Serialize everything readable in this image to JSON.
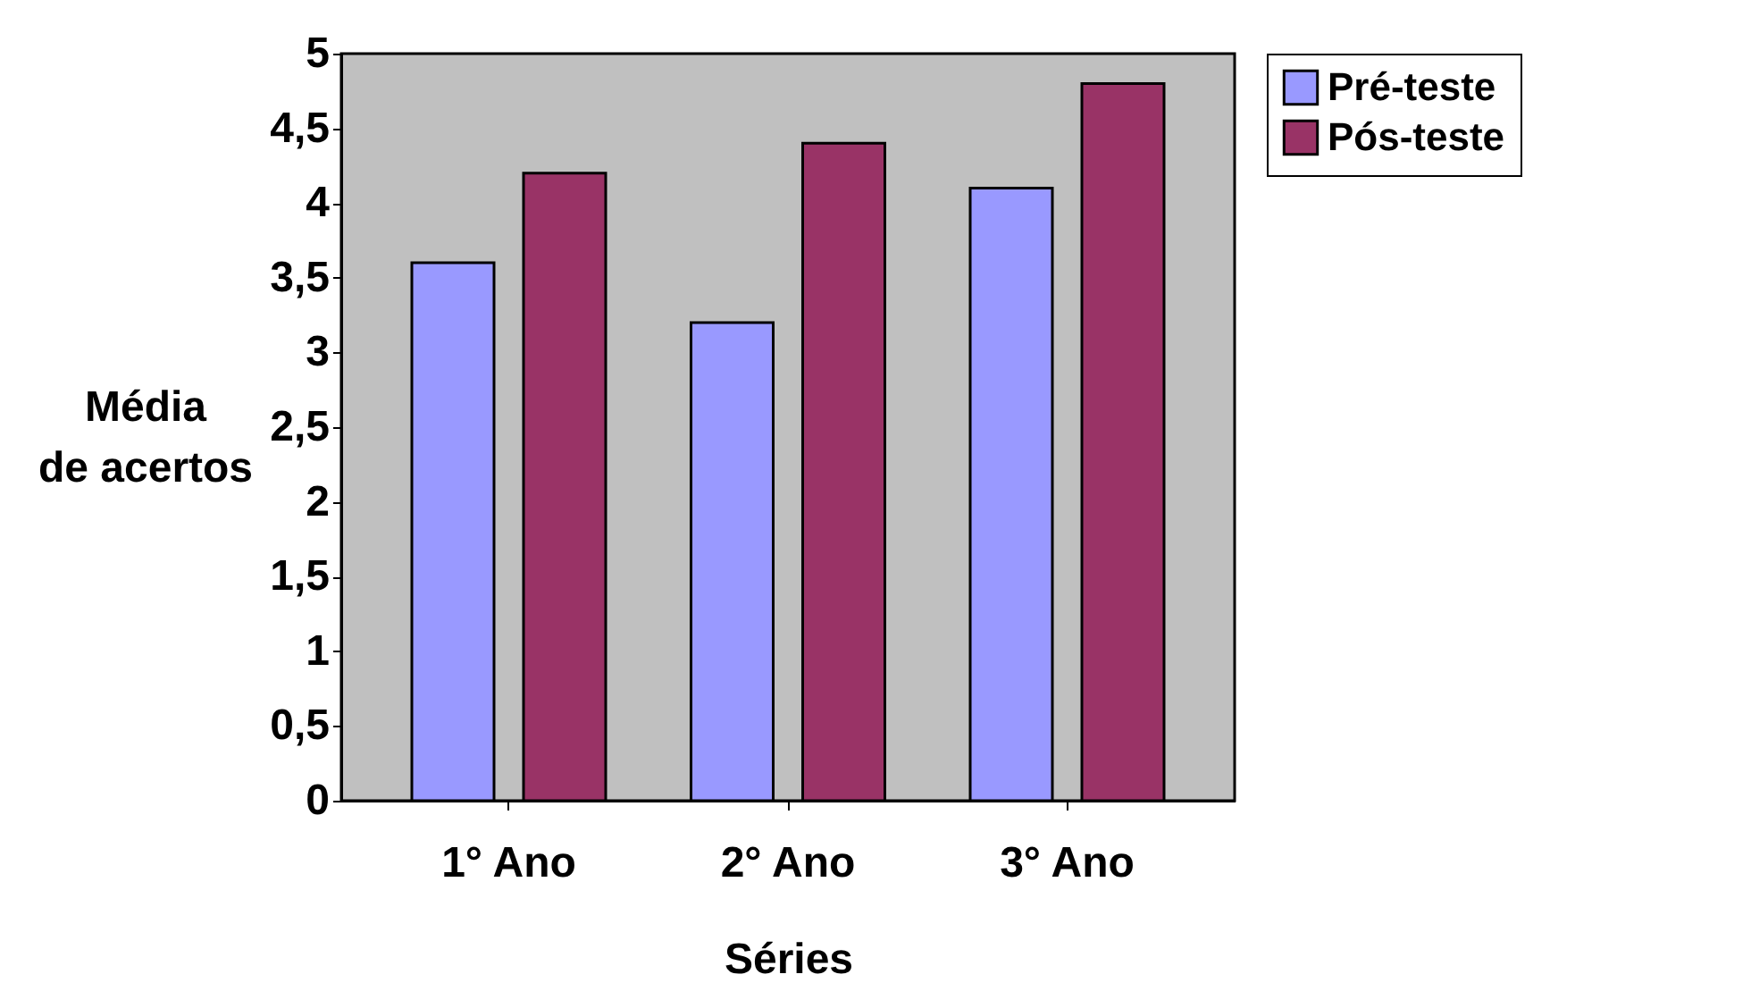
{
  "chart_data": {
    "type": "bar",
    "xlabel": "Séries",
    "ylabel": "Média de acertos",
    "categories": [
      "1° Ano",
      "2° Ano",
      "3° Ano"
    ],
    "series": [
      {
        "name": "Pré-teste",
        "color": "#9999ff",
        "values": [
          3.6,
          3.2,
          4.1
        ]
      },
      {
        "name": "Pós-teste",
        "color": "#993366",
        "values": [
          4.2,
          4.4,
          4.8
        ]
      }
    ],
    "ylim": [
      0,
      5
    ],
    "yticks": [
      0,
      {
        "value": 0.5,
        "label": "0,5"
      },
      1,
      {
        "value": 1.5,
        "label": "1,5"
      },
      2,
      {
        "value": 2.5,
        "label": "2,5"
      },
      3,
      {
        "value": 3.5,
        "label": "3,5"
      },
      4,
      {
        "value": 4.5,
        "label": "4,5"
      },
      5
    ],
    "grid": false,
    "legend": "right"
  }
}
